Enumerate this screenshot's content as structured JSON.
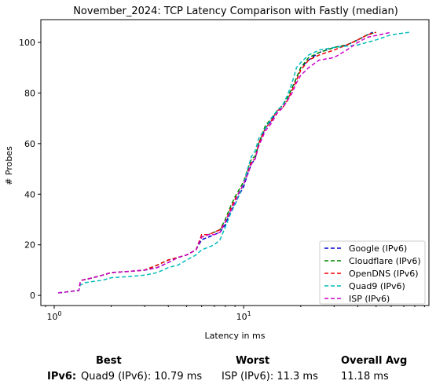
{
  "chart_data": {
    "type": "line",
    "title": "November_2024: TCP Latency Comparison with Fastly (median)",
    "xlabel": "Latency in ms",
    "ylabel": "# Probes",
    "xscale": "log",
    "xlim": [
      0.85,
      95
    ],
    "ylim": [
      -4,
      109
    ],
    "x_tick_values": [
      1,
      10
    ],
    "x_tick_labels": [
      "10^0",
      "10^1"
    ],
    "y_ticks": [
      0,
      20,
      40,
      60,
      80,
      100
    ],
    "grid": false,
    "legend_position": "lower right",
    "series": [
      {
        "name": "Google (IPv6)",
        "color": "#0000cc",
        "points": [
          [
            1.05,
            1
          ],
          [
            1.2,
            1.5
          ],
          [
            1.35,
            2
          ],
          [
            1.37,
            5
          ],
          [
            1.4,
            6
          ],
          [
            1.6,
            7
          ],
          [
            1.8,
            8
          ],
          [
            2.0,
            9
          ],
          [
            2.5,
            9.5
          ],
          [
            3.0,
            10
          ],
          [
            3.5,
            11
          ],
          [
            4.0,
            13
          ],
          [
            4.5,
            15
          ],
          [
            5.0,
            16
          ],
          [
            5.6,
            18
          ],
          [
            6.0,
            22
          ],
          [
            6.5,
            23
          ],
          [
            7.0,
            24
          ],
          [
            7.5,
            25
          ],
          [
            8.0,
            28
          ],
          [
            8.5,
            33
          ],
          [
            9.0,
            36
          ],
          [
            9.5,
            40
          ],
          [
            10.0,
            43
          ],
          [
            10.5,
            48
          ],
          [
            11.0,
            52
          ],
          [
            11.5,
            54
          ],
          [
            12.0,
            60
          ],
          [
            13.0,
            66
          ],
          [
            14.0,
            69
          ],
          [
            15.0,
            73
          ],
          [
            16.0,
            75
          ],
          [
            17.0,
            78
          ],
          [
            18.0,
            82
          ],
          [
            19.0,
            86
          ],
          [
            20.0,
            90
          ],
          [
            22.0,
            93
          ],
          [
            25.0,
            96
          ],
          [
            30.0,
            98
          ],
          [
            35.0,
            99
          ],
          [
            40.0,
            101
          ],
          [
            45.0,
            103
          ],
          [
            48.0,
            104
          ]
        ]
      },
      {
        "name": "Cloudflare (IPv6)",
        "color": "#008800",
        "points": [
          [
            1.05,
            1
          ],
          [
            1.2,
            1.5
          ],
          [
            1.35,
            2
          ],
          [
            1.37,
            5
          ],
          [
            1.4,
            6
          ],
          [
            1.6,
            7
          ],
          [
            1.8,
            8
          ],
          [
            2.0,
            9
          ],
          [
            2.5,
            9.5
          ],
          [
            3.0,
            10
          ],
          [
            3.5,
            12
          ],
          [
            4.0,
            14
          ],
          [
            4.5,
            15
          ],
          [
            5.0,
            16
          ],
          [
            5.6,
            18
          ],
          [
            6.0,
            23
          ],
          [
            6.5,
            24
          ],
          [
            7.0,
            25
          ],
          [
            7.5,
            26
          ],
          [
            8.0,
            30
          ],
          [
            8.5,
            35
          ],
          [
            9.0,
            39
          ],
          [
            9.5,
            42
          ],
          [
            10.0,
            45
          ],
          [
            10.5,
            50
          ],
          [
            11.0,
            54
          ],
          [
            11.5,
            55
          ],
          [
            12.0,
            60
          ],
          [
            13.0,
            67
          ],
          [
            14.0,
            70
          ],
          [
            15.0,
            73
          ],
          [
            16.0,
            75
          ],
          [
            17.0,
            78
          ],
          [
            18.0,
            82
          ],
          [
            19.0,
            86
          ],
          [
            20.0,
            90
          ],
          [
            22.0,
            94
          ],
          [
            25.0,
            96
          ],
          [
            30.0,
            98
          ],
          [
            35.0,
            99
          ],
          [
            40.0,
            101
          ],
          [
            45.0,
            103
          ],
          [
            50.0,
            104
          ]
        ]
      },
      {
        "name": "OpenDNS (IPv6)",
        "color": "#ee0000",
        "points": [
          [
            1.05,
            1
          ],
          [
            1.2,
            1.5
          ],
          [
            1.35,
            2
          ],
          [
            1.37,
            5
          ],
          [
            1.4,
            6
          ],
          [
            1.6,
            7
          ],
          [
            1.8,
            8
          ],
          [
            2.0,
            9
          ],
          [
            2.5,
            9.5
          ],
          [
            3.0,
            10
          ],
          [
            3.5,
            12
          ],
          [
            4.0,
            14
          ],
          [
            4.5,
            15
          ],
          [
            5.0,
            16
          ],
          [
            5.6,
            18
          ],
          [
            6.0,
            24
          ],
          [
            6.5,
            24
          ],
          [
            7.0,
            25
          ],
          [
            7.5,
            26
          ],
          [
            8.0,
            29
          ],
          [
            8.5,
            34
          ],
          [
            9.0,
            38
          ],
          [
            9.5,
            41
          ],
          [
            10.0,
            44
          ],
          [
            10.5,
            49
          ],
          [
            11.0,
            53
          ],
          [
            11.5,
            54
          ],
          [
            12.0,
            60
          ],
          [
            13.0,
            66
          ],
          [
            14.0,
            69
          ],
          [
            15.0,
            73
          ],
          [
            16.0,
            74
          ],
          [
            17.0,
            77
          ],
          [
            18.0,
            81
          ],
          [
            19.0,
            85
          ],
          [
            20.0,
            89
          ],
          [
            22.0,
            93
          ],
          [
            25.0,
            95
          ],
          [
            30.0,
            97
          ],
          [
            35.0,
            99
          ],
          [
            40.0,
            101
          ],
          [
            45.0,
            103
          ],
          [
            50.0,
            104
          ]
        ]
      },
      {
        "name": "Quad9 (IPv6)",
        "color": "#00bbbb",
        "points": [
          [
            1.05,
            1
          ],
          [
            1.2,
            1.5
          ],
          [
            1.35,
            2
          ],
          [
            1.37,
            4
          ],
          [
            1.45,
            5
          ],
          [
            1.6,
            5.5
          ],
          [
            1.8,
            6
          ],
          [
            2.0,
            7
          ],
          [
            2.5,
            7.5
          ],
          [
            3.0,
            8
          ],
          [
            3.5,
            9
          ],
          [
            4.0,
            11
          ],
          [
            4.5,
            12
          ],
          [
            5.0,
            14
          ],
          [
            5.6,
            16
          ],
          [
            6.0,
            18
          ],
          [
            6.5,
            19
          ],
          [
            7.0,
            20
          ],
          [
            7.5,
            22
          ],
          [
            8.0,
            27
          ],
          [
            8.5,
            32
          ],
          [
            9.0,
            36
          ],
          [
            9.5,
            40
          ],
          [
            10.0,
            44
          ],
          [
            10.5,
            50
          ],
          [
            11.0,
            55
          ],
          [
            11.5,
            57
          ],
          [
            12.0,
            62
          ],
          [
            13.0,
            66
          ],
          [
            14.0,
            70
          ],
          [
            15.0,
            73
          ],
          [
            16.0,
            75
          ],
          [
            17.0,
            79
          ],
          [
            18.0,
            84
          ],
          [
            19.0,
            90
          ],
          [
            20.0,
            92
          ],
          [
            22.0,
            95
          ],
          [
            25.0,
            97
          ],
          [
            30.0,
            98
          ],
          [
            40.0,
            99
          ],
          [
            50.0,
            101
          ],
          [
            60.0,
            103
          ],
          [
            75.0,
            104
          ]
        ]
      },
      {
        "name": "ISP (IPv6)",
        "color": "#cc00cc",
        "points": [
          [
            1.05,
            1
          ],
          [
            1.2,
            1.5
          ],
          [
            1.35,
            2
          ],
          [
            1.37,
            5
          ],
          [
            1.4,
            6
          ],
          [
            1.6,
            7
          ],
          [
            1.8,
            8
          ],
          [
            2.0,
            9
          ],
          [
            2.5,
            9.5
          ],
          [
            3.0,
            10
          ],
          [
            3.5,
            11
          ],
          [
            4.0,
            13
          ],
          [
            4.5,
            15
          ],
          [
            5.0,
            16
          ],
          [
            5.6,
            18
          ],
          [
            6.0,
            23
          ],
          [
            6.5,
            24
          ],
          [
            7.0,
            24
          ],
          [
            7.5,
            25
          ],
          [
            8.0,
            29
          ],
          [
            8.5,
            33
          ],
          [
            9.0,
            37
          ],
          [
            9.5,
            41
          ],
          [
            10.0,
            44
          ],
          [
            10.5,
            48
          ],
          [
            11.0,
            52
          ],
          [
            11.5,
            54
          ],
          [
            12.0,
            59
          ],
          [
            13.0,
            65
          ],
          [
            14.0,
            68
          ],
          [
            15.0,
            72
          ],
          [
            16.0,
            74
          ],
          [
            17.0,
            77
          ],
          [
            18.0,
            80
          ],
          [
            19.0,
            84
          ],
          [
            20.0,
            87
          ],
          [
            22.0,
            90
          ],
          [
            25.0,
            93
          ],
          [
            30.0,
            94
          ],
          [
            35.0,
            97
          ],
          [
            40.0,
            100
          ],
          [
            45.0,
            102
          ],
          [
            60.0,
            104
          ]
        ]
      }
    ]
  },
  "summary": {
    "best_header": "Best",
    "worst_header": "Worst",
    "avg_header": "Overall Avg",
    "row_label": "IPv6:",
    "best_value": "Quad9 (IPv6): 10.79 ms",
    "worst_value": "ISP (IPv6): 11.3 ms",
    "avg_value": "11.18 ms"
  }
}
